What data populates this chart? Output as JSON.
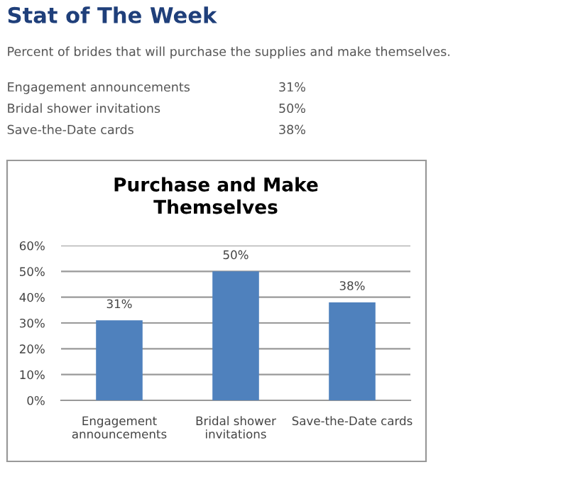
{
  "chart_data": {
    "type": "bar",
    "title": "Purchase and Make Themselves",
    "annotations": [
      "Stat of The Week",
      "Percent of brides that will purchase the supplies and make themselves.",
      "Engagement announcements",
      "31%",
      "Bridal shower invitations",
      "50%",
      "Save-the-Date cards",
      "38%"
    ],
    "categories": [
      "Engagement announcements",
      "Bridal shower invitations",
      "Save-the-Date cards"
    ],
    "values": [
      31,
      50,
      38
    ],
    "value_labels": [
      "31%",
      "50%",
      "38%"
    ],
    "color": "#4f81bd",
    "ylim": [
      0,
      60
    ],
    "yticks": [
      {
        "value": 0,
        "label": "0%"
      },
      {
        "value": 10,
        "label": "10%"
      },
      {
        "value": 20,
        "label": "20%"
      },
      {
        "value": 30,
        "label": "30%"
      },
      {
        "value": 40,
        "label": "40%"
      },
      {
        "value": 50,
        "label": "50%"
      },
      {
        "value": 60,
        "label": "60%"
      }
    ],
    "grid": "y"
  }
}
